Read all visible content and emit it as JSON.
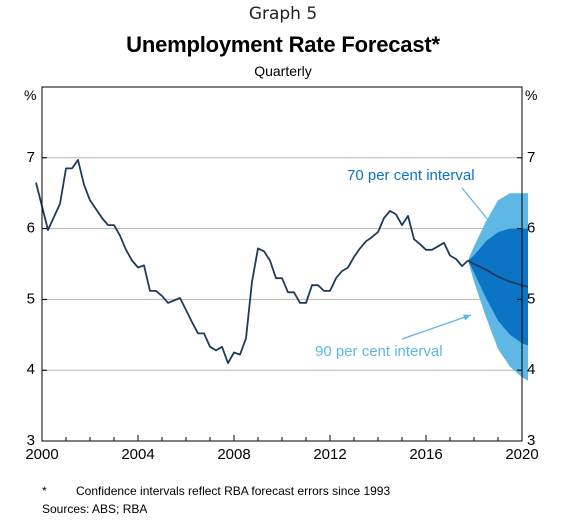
{
  "header": {
    "graph_number": "Graph 5",
    "title": "Unemployment Rate Forecast*",
    "subtitle": "Quarterly"
  },
  "footer": {
    "footnote_marker": "*",
    "footnote": "Confidence intervals reflect RBA forecast errors since 1993",
    "sources": "Sources:  ABS; RBA"
  },
  "colors": {
    "actual_line": "#1f3b5c",
    "interval_70": "#0b74c4",
    "interval_90": "#5eb7e5",
    "label_70": "#0b74c4",
    "label_90": "#5eb7e5",
    "grid": "#b5b5b5"
  },
  "chart_data": {
    "type": "line",
    "title": "Unemployment Rate Forecast*",
    "subtitle": "Quarterly",
    "xlim": [
      2000,
      2020
    ],
    "ylim": [
      3,
      8
    ],
    "x_ticks": [
      "2000",
      "2004",
      "2008",
      "2012",
      "2016",
      "2020"
    ],
    "y_ticks": [
      "3",
      "4",
      "5",
      "6",
      "7"
    ],
    "y_unit_left": "%",
    "y_unit_right": "%",
    "grid": true,
    "annotations": [
      "70 per cent interval",
      "90 per cent interval"
    ],
    "actual": {
      "x": [
        1999.75,
        2000.25,
        2000.75,
        2001.0,
        2001.25,
        2001.5,
        2001.75,
        2002.0,
        2002.5,
        2002.75,
        2003.0,
        2003.25,
        2003.5,
        2003.75,
        2004.0,
        2004.25,
        2004.5,
        2004.75,
        2005.0,
        2005.25,
        2005.75,
        2006.0,
        2006.25,
        2006.5,
        2006.75,
        2007.0,
        2007.25,
        2007.5,
        2007.75,
        2008.0,
        2008.25,
        2008.5,
        2008.75,
        2009.0,
        2009.25,
        2009.5,
        2009.75,
        2010.0,
        2010.25,
        2010.5,
        2010.75,
        2011.0,
        2011.25,
        2011.5,
        2011.75,
        2012.0,
        2012.25,
        2012.5,
        2012.75,
        2013.0,
        2013.25,
        2013.5,
        2013.75,
        2014.0,
        2014.25,
        2014.5,
        2014.75,
        2015.0,
        2015.25,
        2015.5,
        2015.75,
        2016.0,
        2016.25,
        2016.5,
        2016.75,
        2017.0,
        2017.25,
        2017.5,
        2017.75
      ],
      "y": [
        6.65,
        5.98,
        6.35,
        6.85,
        6.85,
        6.97,
        6.62,
        6.4,
        6.15,
        6.05,
        6.05,
        5.9,
        5.7,
        5.55,
        5.45,
        5.48,
        5.12,
        5.12,
        5.05,
        4.95,
        5.02,
        4.85,
        4.68,
        4.52,
        4.52,
        4.33,
        4.28,
        4.33,
        4.1,
        4.25,
        4.22,
        4.45,
        5.25,
        5.72,
        5.68,
        5.55,
        5.3,
        5.3,
        5.1,
        5.1,
        4.95,
        4.95,
        5.2,
        5.2,
        5.12,
        5.12,
        5.3,
        5.4,
        5.45,
        5.6,
        5.72,
        5.82,
        5.88,
        5.95,
        6.15,
        6.25,
        6.2,
        6.05,
        6.18,
        5.85,
        5.78,
        5.7,
        5.7,
        5.75,
        5.8,
        5.62,
        5.57,
        5.47,
        5.55
      ]
    },
    "forecast": {
      "x": [
        2017.75,
        2018.0,
        2018.5,
        2019.0,
        2019.5,
        2020.0,
        2020.25
      ],
      "central": [
        5.55,
        5.5,
        5.42,
        5.32,
        5.25,
        5.2,
        5.18
      ],
      "interval_70_upper": [
        5.55,
        5.62,
        5.82,
        5.95,
        6.0,
        6.0,
        6.0
      ],
      "interval_70_lower": [
        5.55,
        5.38,
        5.02,
        4.7,
        4.5,
        4.38,
        4.35
      ],
      "interval_90_upper": [
        5.55,
        5.75,
        6.1,
        6.4,
        6.5,
        6.5,
        6.5
      ],
      "interval_90_lower": [
        5.55,
        5.25,
        4.75,
        4.3,
        4.05,
        3.9,
        3.85
      ]
    }
  }
}
